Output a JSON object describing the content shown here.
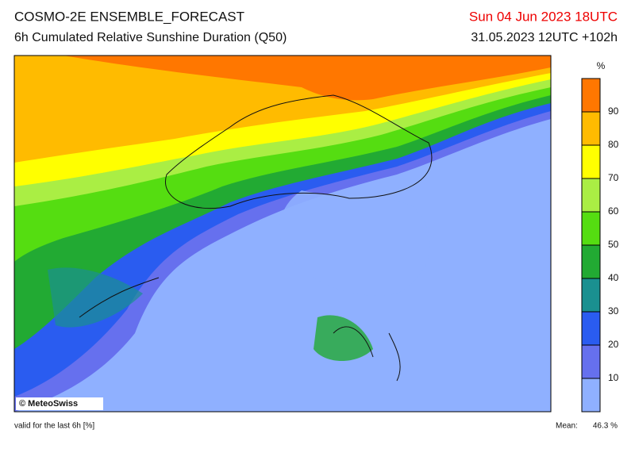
{
  "header": {
    "title": "COSMO-2E ENSEMBLE_FORECAST",
    "subtitle": "6h Cumulated Relative Sunshine Duration (Q50)",
    "valid_time": "Sun 04 Jun 2023 18UTC",
    "run": "31.05.2023 12UTC +102h"
  },
  "map": {
    "copyright": "© MeteoSwiss"
  },
  "colorbar": {
    "unit": "%",
    "ylim": [
      0,
      100
    ],
    "yticks": [
      10,
      20,
      30,
      40,
      50,
      60,
      70,
      80,
      90
    ],
    "colors": [
      "#8fb0ff",
      "#6670ee",
      "#2a5cf0",
      "#1a9090",
      "#22aa33",
      "#55dd11",
      "#aaee44",
      "#ffff00",
      "#ffbb00",
      "#ff7700"
    ]
  },
  "footer": {
    "note": "valid for the last 6h [%]",
    "mean_label": "Mean:",
    "mean_value": "46.3 %"
  }
}
